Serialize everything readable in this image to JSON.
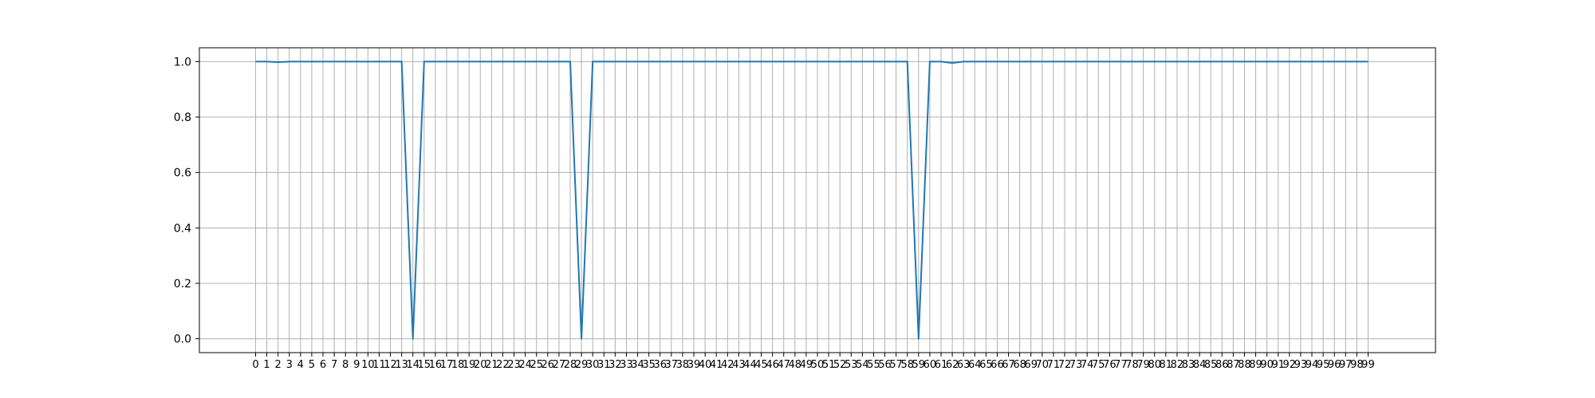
{
  "chart_data": {
    "type": "line",
    "title": "",
    "xlabel": "",
    "ylabel": "",
    "x_tick_labels": [
      "0",
      "1",
      "2",
      "3",
      "4",
      "5",
      "6",
      "7",
      "8",
      "9",
      "10",
      "11",
      "12",
      "13",
      "14",
      "15",
      "16",
      "17",
      "18",
      "19",
      "20",
      "21",
      "22",
      "23",
      "24",
      "25",
      "26",
      "27",
      "28",
      "29",
      "30",
      "31",
      "32",
      "33",
      "34",
      "35",
      "36",
      "37",
      "38",
      "39",
      "40",
      "41",
      "42",
      "43",
      "44",
      "45",
      "46",
      "47",
      "48",
      "49",
      "50",
      "51",
      "52",
      "53",
      "54",
      "55",
      "56",
      "57",
      "58",
      "59",
      "60",
      "61",
      "62",
      "63",
      "64",
      "65",
      "66",
      "67",
      "68",
      "69",
      "70",
      "71",
      "72",
      "73",
      "74",
      "75",
      "76",
      "77",
      "78",
      "79",
      "80",
      "81",
      "82",
      "83",
      "84",
      "85",
      "86",
      "87",
      "88",
      "89",
      "90",
      "91",
      "92",
      "93",
      "94",
      "95",
      "96",
      "97",
      "98",
      "99"
    ],
    "y_tick_labels": [
      "0.0",
      "0.2",
      "0.4",
      "0.6",
      "0.8",
      "1.0"
    ],
    "y_ticks": [
      0.0,
      0.2,
      0.4,
      0.6,
      0.8,
      1.0
    ],
    "xlim": [
      -5,
      105
    ],
    "ylim": [
      -0.05,
      1.05
    ],
    "grid": true,
    "colors": {
      "line": "#1f77b4",
      "grid": "#b0b0b0",
      "axes": "#000000"
    },
    "series": [
      {
        "x": [
          0,
          1,
          2,
          3,
          4,
          5,
          6,
          7,
          8,
          9,
          10,
          11,
          12,
          13,
          14,
          15,
          16,
          17,
          18,
          19,
          20,
          21,
          22,
          23,
          24,
          25,
          26,
          27,
          28,
          29,
          30,
          31,
          32,
          33,
          34,
          35,
          36,
          37,
          38,
          39,
          40,
          41,
          42,
          43,
          44,
          45,
          46,
          47,
          48,
          49,
          50,
          51,
          52,
          53,
          54,
          55,
          56,
          57,
          58,
          59,
          60,
          61,
          62,
          63,
          64,
          65,
          66,
          67,
          68,
          69,
          70,
          71,
          72,
          73,
          74,
          75,
          76,
          77,
          78,
          79,
          80,
          81,
          82,
          83,
          84,
          85,
          86,
          87,
          88,
          89,
          90,
          91,
          92,
          93,
          94,
          95,
          96,
          97,
          98,
          99
        ],
        "values": [
          1.0,
          1.0,
          0.998,
          1.0,
          1.0,
          1.0,
          1.0,
          1.0,
          1.0,
          1.0,
          1.0,
          1.0,
          1.0,
          1.0,
          0.0,
          1.0,
          1.0,
          1.0,
          1.0,
          1.0,
          1.0,
          1.0,
          1.0,
          1.0,
          1.0,
          1.0,
          1.0,
          1.0,
          1.0,
          0.0,
          1.0,
          1.0,
          1.0,
          1.0,
          1.0,
          1.0,
          1.0,
          1.0,
          1.0,
          1.0,
          1.0,
          1.0,
          1.0,
          1.0,
          1.0,
          1.0,
          1.0,
          1.0,
          1.0,
          1.0,
          1.0,
          1.0,
          1.0,
          1.0,
          1.0,
          1.0,
          1.0,
          1.0,
          1.0,
          0.0,
          1.0,
          1.0,
          0.995,
          1.0,
          1.0,
          1.0,
          1.0,
          1.0,
          1.0,
          1.0,
          1.0,
          1.0,
          1.0,
          1.0,
          1.0,
          1.0,
          1.0,
          1.0,
          1.0,
          1.0,
          1.0,
          1.0,
          1.0,
          1.0,
          1.0,
          1.0,
          1.0,
          1.0,
          1.0,
          1.0,
          1.0,
          1.0,
          1.0,
          1.0,
          1.0,
          1.0,
          1.0,
          1.0,
          1.0,
          1.0
        ]
      }
    ]
  }
}
